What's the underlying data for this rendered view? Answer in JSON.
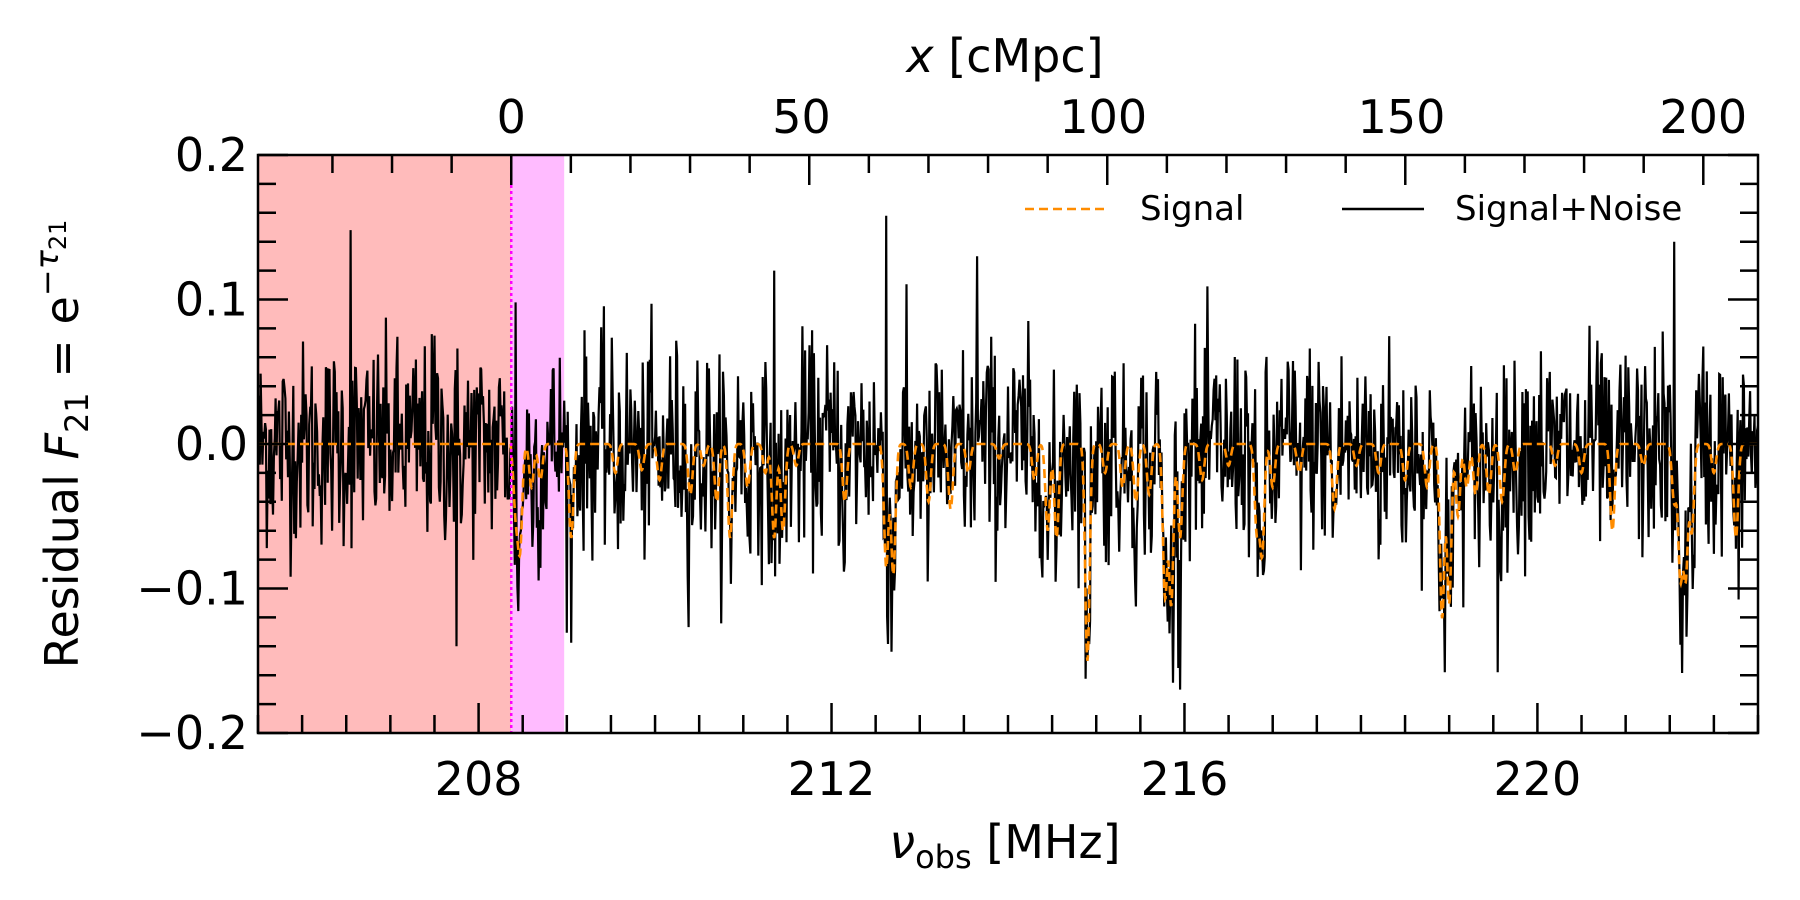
{
  "chart_data": {
    "type": "line",
    "xlabel_bottom": {
      "symbol": "ν",
      "sub": "obs",
      "unit": " [MHz]"
    },
    "xlabel_top": {
      "symbol": "x",
      "unit": " [cMpc]"
    },
    "ylabel": {
      "text": "Residual ",
      "symbol": "F",
      "sub": "21",
      "eq": " = e",
      "sup_sym": "−τ",
      "sup_sub": "21"
    },
    "xlim_bottom": [
      205.5,
      222.5
    ],
    "ylim": [
      -0.2,
      0.2
    ],
    "bottom_ticks": [
      208,
      212,
      216,
      220
    ],
    "top_ticks": [
      0,
      50,
      100,
      150,
      200
    ],
    "top_tick_positions_mhz": [
      208.37,
      211.66,
      215.08,
      218.46,
      221.88
    ],
    "y_ticks": [
      -0.2,
      -0.1,
      0.0,
      0.1,
      0.2
    ],
    "y_tick_labels": [
      "−0.2",
      "−0.1",
      "0.0",
      "0.1",
      "0.2"
    ],
    "shaded_regions": [
      {
        "from": 205.5,
        "to": 208.37,
        "color": "#ffbbbb"
      },
      {
        "from": 208.37,
        "to": 208.97,
        "color": "#ffbbff"
      }
    ],
    "vertical_line": {
      "x": 208.37,
      "color": "#ff00ff"
    },
    "legend": {
      "location": "upper right",
      "entries": [
        "Signal",
        "Signal+Noise"
      ]
    },
    "series": [
      {
        "name": "Signal",
        "color": "#ff8c00",
        "style": "dashed",
        "baseline": 0.0,
        "absorption_features": [
          [
            208.42,
            -0.045
          ],
          [
            208.47,
            -0.07
          ],
          [
            208.6,
            -0.03
          ],
          [
            208.7,
            -0.025
          ],
          [
            209.05,
            -0.065
          ],
          [
            209.55,
            -0.02
          ],
          [
            209.85,
            -0.018
          ],
          [
            210.05,
            -0.025
          ],
          [
            210.4,
            -0.035
          ],
          [
            210.55,
            -0.015
          ],
          [
            210.7,
            -0.04
          ],
          [
            210.85,
            -0.065
          ],
          [
            211.05,
            -0.03
          ],
          [
            211.25,
            -0.02
          ],
          [
            211.35,
            -0.065
          ],
          [
            211.45,
            -0.06
          ],
          [
            211.6,
            -0.015
          ],
          [
            212.15,
            -0.04
          ],
          [
            212.62,
            -0.085
          ],
          [
            212.7,
            -0.09
          ],
          [
            212.9,
            -0.03
          ],
          [
            213.1,
            -0.04
          ],
          [
            213.35,
            -0.045
          ],
          [
            213.55,
            -0.02
          ],
          [
            213.9,
            -0.01
          ],
          [
            214.3,
            -0.025
          ],
          [
            214.45,
            -0.06
          ],
          [
            214.55,
            -0.065
          ],
          [
            214.9,
            -0.15
          ],
          [
            215.1,
            -0.02
          ],
          [
            215.3,
            -0.03
          ],
          [
            215.45,
            -0.04
          ],
          [
            215.6,
            -0.035
          ],
          [
            215.78,
            -0.105
          ],
          [
            215.85,
            -0.11
          ],
          [
            215.95,
            -0.065
          ],
          [
            216.2,
            -0.025
          ],
          [
            216.5,
            -0.015
          ],
          [
            216.82,
            -0.06
          ],
          [
            216.88,
            -0.075
          ],
          [
            217.0,
            -0.03
          ],
          [
            217.3,
            -0.02
          ],
          [
            217.7,
            -0.045
          ],
          [
            217.95,
            -0.015
          ],
          [
            218.2,
            -0.02
          ],
          [
            218.5,
            -0.025
          ],
          [
            218.75,
            -0.03
          ],
          [
            218.92,
            -0.12
          ],
          [
            219.0,
            -0.11
          ],
          [
            219.1,
            -0.05
          ],
          [
            219.2,
            -0.03
          ],
          [
            219.3,
            -0.035
          ],
          [
            219.45,
            -0.035
          ],
          [
            219.6,
            -0.04
          ],
          [
            219.75,
            -0.02
          ],
          [
            220.2,
            -0.015
          ],
          [
            220.5,
            -0.02
          ],
          [
            220.85,
            -0.06
          ],
          [
            221.2,
            -0.015
          ],
          [
            221.55,
            -0.04
          ],
          [
            221.62,
            -0.09
          ],
          [
            221.68,
            -0.09
          ],
          [
            221.75,
            -0.06
          ],
          [
            222.0,
            -0.02
          ],
          [
            222.25,
            -0.065
          ]
        ]
      },
      {
        "name": "Signal+Noise",
        "color": "#000000",
        "style": "solid",
        "noise_rms": 0.035,
        "n_points": 1700,
        "notable_values": [
          [
            206.55,
            0.148
          ],
          [
            207.5,
            0.075
          ],
          [
            207.75,
            -0.14
          ],
          [
            208.42,
            0.098
          ],
          [
            212.62,
            0.158
          ],
          [
            214.9,
            -0.15
          ],
          [
            215.93,
            -0.155
          ],
          [
            218.95,
            -0.158
          ],
          [
            219.55,
            -0.158
          ],
          [
            221.55,
            0.14
          ],
          [
            211.35,
            0.12
          ],
          [
            213.65,
            0.13
          ]
        ]
      }
    ]
  }
}
